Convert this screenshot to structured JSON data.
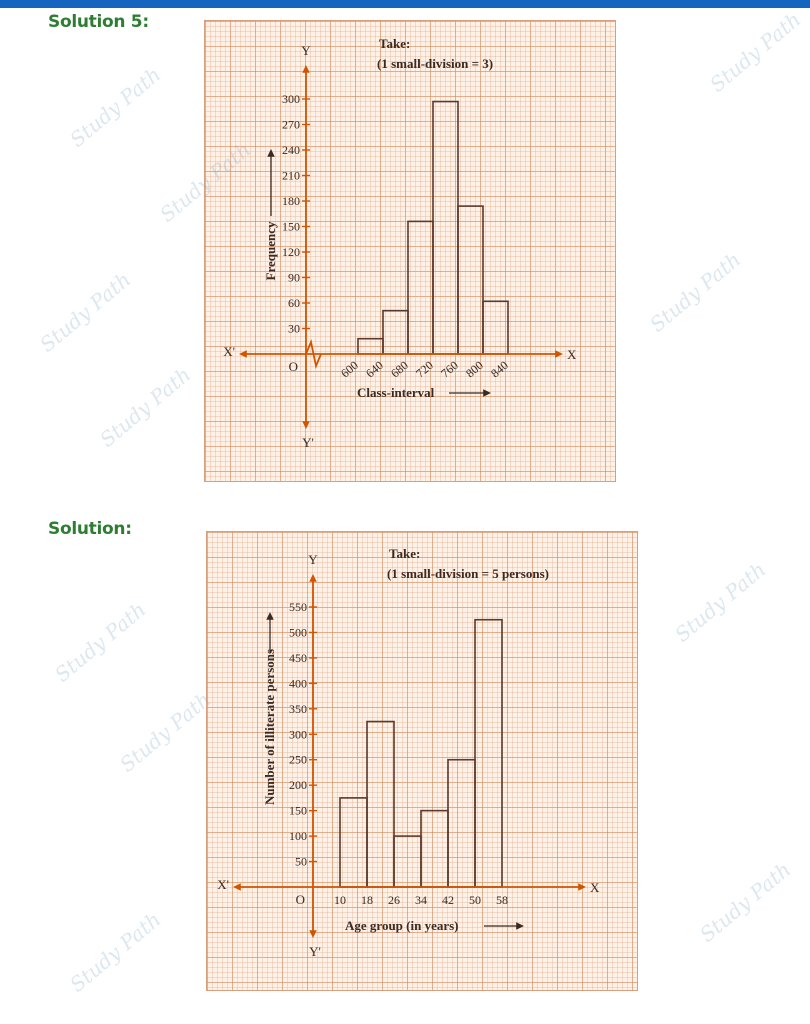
{
  "headings": {
    "solution5": "Solution 5:",
    "solution": "Solution:"
  },
  "watermark": "Study Path",
  "colors": {
    "axis": "#d35400",
    "bar": "#5a3a2e",
    "heading": "#2e7d32",
    "topbar": "#1565c0"
  },
  "chart_data": [
    {
      "type": "bar",
      "histogram": true,
      "note_title": "Take:",
      "note": "(1 small-division = 3)",
      "ylabel": "Frequency",
      "xlabel": "Class-interval",
      "axis_labels": {
        "y": "Y",
        "y_neg": "Y'",
        "x": "X",
        "x_neg": "X'",
        "origin": "O"
      },
      "x_ticks": [
        "600",
        "640",
        "680",
        "720",
        "760",
        "800",
        "840"
      ],
      "y_ticks": [
        "30",
        "60",
        "90",
        "120",
        "150",
        "180",
        "210",
        "240",
        "270",
        "300"
      ],
      "ylim": [
        0,
        300
      ],
      "kink": true,
      "bins": [
        {
          "from": 600,
          "to": 640,
          "value": 18
        },
        {
          "from": 640,
          "to": 680,
          "value": 51
        },
        {
          "from": 680,
          "to": 720,
          "value": 156
        },
        {
          "from": 720,
          "to": 760,
          "value": 297
        },
        {
          "from": 760,
          "to": 800,
          "value": 174
        },
        {
          "from": 800,
          "to": 840,
          "value": 62
        }
      ]
    },
    {
      "type": "bar",
      "histogram": true,
      "note_title": "Take:",
      "note": "(1 small-division = 5 persons)",
      "ylabel": "Number of illiterate persons",
      "xlabel": "Age group (in years)",
      "axis_labels": {
        "y": "Y",
        "y_neg": "Y'",
        "x": "X",
        "x_neg": "X'",
        "origin": "O"
      },
      "x_ticks": [
        "10",
        "18",
        "26",
        "34",
        "42",
        "50",
        "58"
      ],
      "y_ticks": [
        "50",
        "100",
        "150",
        "200",
        "250",
        "300",
        "350",
        "400",
        "450",
        "500",
        "550"
      ],
      "ylim": [
        0,
        550
      ],
      "kink": false,
      "bins": [
        {
          "from": 10,
          "to": 18,
          "value": 175
        },
        {
          "from": 18,
          "to": 26,
          "value": 325
        },
        {
          "from": 26,
          "to": 34,
          "value": 100
        },
        {
          "from": 34,
          "to": 42,
          "value": 150
        },
        {
          "from": 42,
          "to": 50,
          "value": 250
        },
        {
          "from": 50,
          "to": 58,
          "value": 525
        }
      ]
    }
  ]
}
